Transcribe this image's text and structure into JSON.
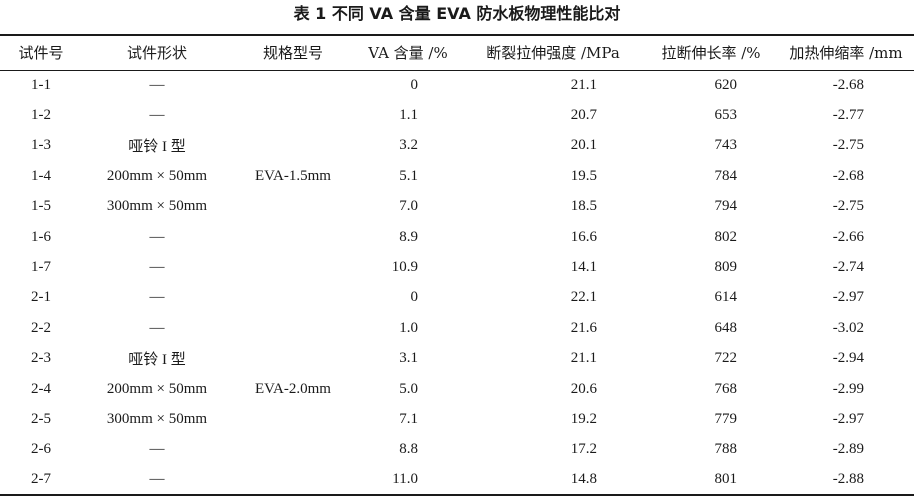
{
  "caption": "表 1 不同 VA 含量 EVA 防水板物理性能比对",
  "headers": {
    "id": "试件号",
    "shape": "试件形状",
    "spec": "规格型号",
    "va": "VA 含量 /%",
    "strength": "断裂拉伸强度 /MPa",
    "elongation": "拉断伸长率 /%",
    "shrinkage": "加热伸缩率 /mm"
  },
  "rows": [
    {
      "id": "1-1",
      "shape": "—",
      "spec": "",
      "va": "0",
      "strength": "21.1",
      "elongation": "620",
      "shrinkage": "-2.68"
    },
    {
      "id": "1-2",
      "shape": "—",
      "spec": "",
      "va": "1.1",
      "strength": "20.7",
      "elongation": "653",
      "shrinkage": "-2.77"
    },
    {
      "id": "1-3",
      "shape": "哑铃 I 型",
      "spec": "",
      "va": "3.2",
      "strength": "20.1",
      "elongation": "743",
      "shrinkage": "-2.75"
    },
    {
      "id": "1-4",
      "shape": "200mm × 50mm",
      "spec": "EVA-1.5mm",
      "va": "5.1",
      "strength": "19.5",
      "elongation": "784",
      "shrinkage": "-2.68"
    },
    {
      "id": "1-5",
      "shape": "300mm × 50mm",
      "spec": "",
      "va": "7.0",
      "strength": "18.5",
      "elongation": "794",
      "shrinkage": "-2.75"
    },
    {
      "id": "1-6",
      "shape": "—",
      "spec": "",
      "va": "8.9",
      "strength": "16.6",
      "elongation": "802",
      "shrinkage": "-2.66"
    },
    {
      "id": "1-7",
      "shape": "—",
      "spec": "",
      "va": "10.9",
      "strength": "14.1",
      "elongation": "809",
      "shrinkage": "-2.74"
    },
    {
      "id": "2-1",
      "shape": "—",
      "spec": "",
      "va": "0",
      "strength": "22.1",
      "elongation": "614",
      "shrinkage": "-2.97"
    },
    {
      "id": "2-2",
      "shape": "—",
      "spec": "",
      "va": "1.0",
      "strength": "21.6",
      "elongation": "648",
      "shrinkage": "-3.02"
    },
    {
      "id": "2-3",
      "shape": "哑铃 I 型",
      "spec": "",
      "va": "3.1",
      "strength": "21.1",
      "elongation": "722",
      "shrinkage": "-2.94"
    },
    {
      "id": "2-4",
      "shape": "200mm × 50mm",
      "spec": "EVA-2.0mm",
      "va": "5.0",
      "strength": "20.6",
      "elongation": "768",
      "shrinkage": "-2.99"
    },
    {
      "id": "2-5",
      "shape": "300mm × 50mm",
      "spec": "",
      "va": "7.1",
      "strength": "19.2",
      "elongation": "779",
      "shrinkage": "-2.97"
    },
    {
      "id": "2-6",
      "shape": "—",
      "spec": "",
      "va": "8.8",
      "strength": "17.2",
      "elongation": "788",
      "shrinkage": "-2.89"
    },
    {
      "id": "2-7",
      "shape": "—",
      "spec": "",
      "va": "11.0",
      "strength": "14.8",
      "elongation": "801",
      "shrinkage": "-2.88"
    }
  ]
}
